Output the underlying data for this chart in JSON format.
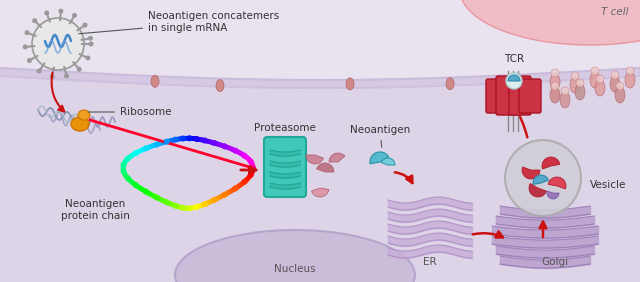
{
  "bg_color": "#E8E3EE",
  "cell_bg": "#E0D8EB",
  "cell_interior": "#DDD4E8",
  "tcell_color": "#F2B8C2",
  "tcell_edge": "#E8909A",
  "membrane_color": "#C8B8D8",
  "nucleus_color": "#C8BAD8",
  "nucleus_edge": "#B0A0C8",
  "vesicle_color": "#D0CDD8",
  "vesicle_edge": "#AAAAAA",
  "arrow_color": "#CC1111",
  "nanoparticle_color": "#E8E8E8",
  "nanoparticle_edge": "#999999",
  "ribosome_color": "#E8920A",
  "proteasome_color": "#40C8B8",
  "proteasome_edge": "#20A898",
  "er_color": "#C8B0D8",
  "golgi_color": "#B8A0CC",
  "chain_colors_n": 60,
  "tcr_color": "#CC3344",
  "tcr_edge": "#AA1122",
  "receptor_color": "#E09090",
  "labels": {
    "nanoparticle": "Neoantigen concatemers\nin single mRNA",
    "ribosome": "Ribosome",
    "protein_chain": "Neoantigen\nprotein chain",
    "proteasome": "Proteasome",
    "neoantigen": "Neoantigen",
    "nucleus": "Nucleus",
    "er": "ER",
    "golgi": "Golgi",
    "vesicle": "Vesicle",
    "tcr": "TCR",
    "tcell": "T cell"
  },
  "label_fontsize": 7.5,
  "figsize": [
    6.4,
    2.82
  ],
  "dpi": 100
}
